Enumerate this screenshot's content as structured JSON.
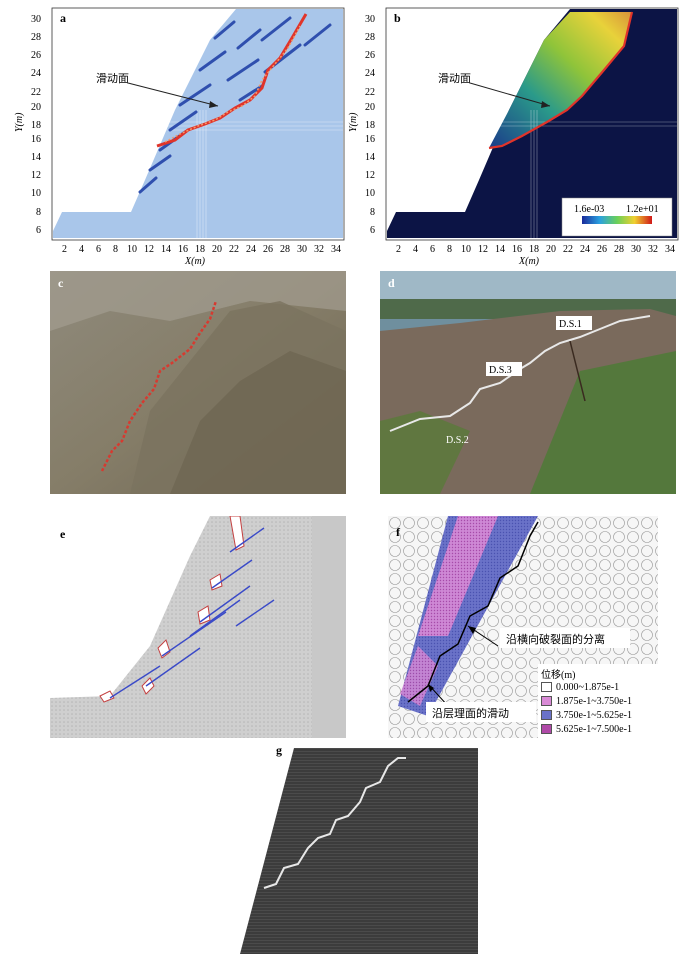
{
  "panels": {
    "a": {
      "label": "a",
      "xaxis_label": "X(m)",
      "yaxis_label": "Y(m)",
      "annotation": "滑动面"
    },
    "b": {
      "label": "b",
      "xaxis_label": "X(m)",
      "yaxis_label": "Y(m)",
      "annotation": "滑动面",
      "colorbar_min": "1.6e-03",
      "colorbar_max": "1.2e+01"
    },
    "c": {
      "label": "c"
    },
    "d": {
      "label": "d",
      "tags": [
        "D.S.1",
        "D.S.3",
        "D.S.2"
      ]
    },
    "e": {
      "label": "e"
    },
    "f": {
      "label": "f",
      "annot_separation": "沿横向破裂面的分离",
      "annot_slide": "沿层理面的滑动",
      "legend_title": "位移(m)",
      "legend": [
        {
          "label": "0.000~1.875e-1",
          "color": "#ffffff"
        },
        {
          "label": "1.875e-1~3.750e-1",
          "color": "#d98ad6"
        },
        {
          "label": "3.750e-1~5.625e-1",
          "color": "#6a72c8"
        },
        {
          "label": "5.625e-1~7.500e-1",
          "color": "#b04aa8"
        }
      ]
    },
    "g": {
      "label": "g"
    }
  },
  "axes": {
    "x_ticks": [
      "2",
      "4",
      "6",
      "8",
      "10",
      "12",
      "14",
      "16",
      "18",
      "20",
      "22",
      "24",
      "26",
      "28",
      "30",
      "32",
      "34"
    ],
    "y_ticks": [
      "6",
      "8",
      "10",
      "12",
      "14",
      "16",
      "18",
      "20",
      "22",
      "24",
      "26",
      "28",
      "30"
    ]
  }
}
